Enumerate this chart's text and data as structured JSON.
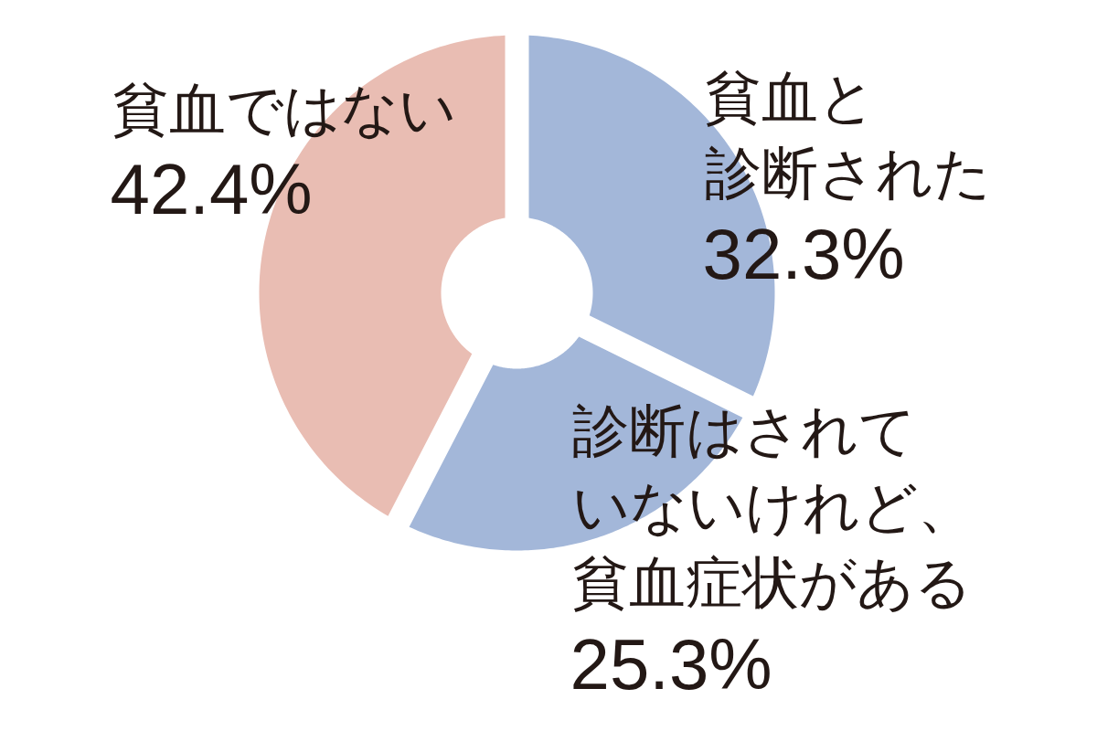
{
  "chart_data": {
    "type": "donut",
    "categories": [
      "貧血と診断された",
      "診断はされていないけれど、貧血症状がある",
      "貧血ではない"
    ],
    "values": [
      32.3,
      25.3,
      42.4
    ],
    "colors": [
      "#a3b7d9",
      "#a3b7d9",
      "#e9bdb3"
    ],
    "value_labels": [
      "32.3%",
      "25.3%",
      "42.4%"
    ]
  }
}
